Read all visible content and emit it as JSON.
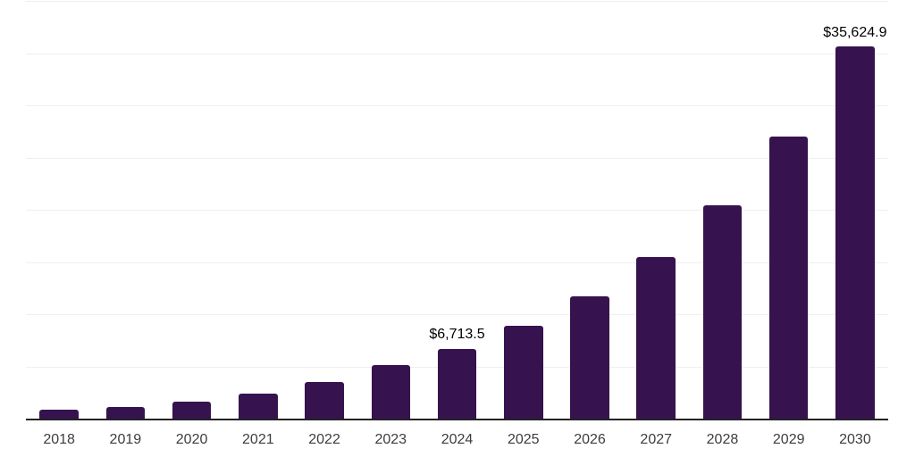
{
  "chart_data": {
    "type": "bar",
    "title": "",
    "xlabel": "",
    "ylabel": "",
    "categories": [
      "2018",
      "2019",
      "2020",
      "2021",
      "2022",
      "2023",
      "2024",
      "2025",
      "2026",
      "2027",
      "2028",
      "2029",
      "2030"
    ],
    "values": [
      820,
      1140,
      1620,
      2390,
      3520,
      5100,
      6713.5,
      8866.1,
      11709.6,
      15464.9,
      20424.6,
      26974.5,
      35624.9
    ],
    "ylim": [
      0,
      40000
    ],
    "grid_step": 5000,
    "grid": "horizontal",
    "legend_position": "none",
    "annotations": [
      {
        "category": "2024",
        "text": "$6,713.5"
      },
      {
        "category": "2030",
        "text": "$35,624.9"
      }
    ],
    "colors": {
      "bar": "#36124E",
      "axis": "#232323",
      "gridline": "#efefef",
      "tick_label": "#3d3d3d",
      "annotation": "#000000",
      "background": "#ffffff"
    }
  }
}
